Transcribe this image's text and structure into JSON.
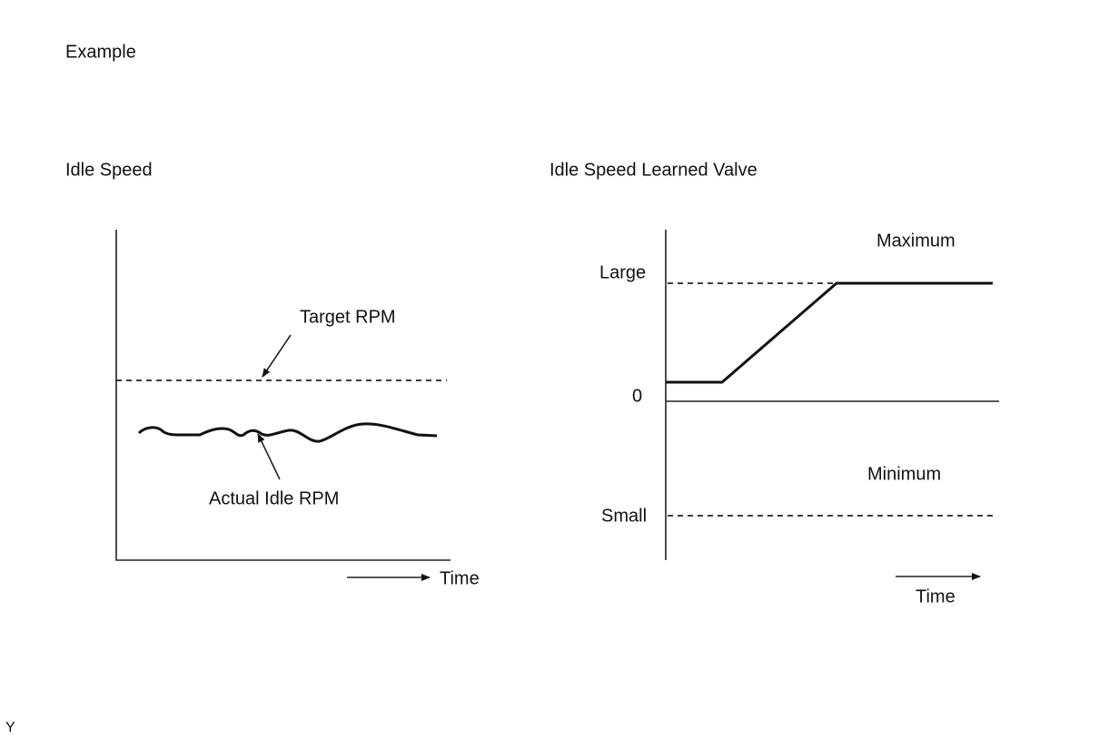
{
  "header": {
    "title": "Example"
  },
  "left": {
    "title": "Idle Speed",
    "target_label": "Target RPM",
    "actual_label": "Actual Idle RPM",
    "time_label": "Time"
  },
  "right": {
    "title": "Idle Speed Learned Valve",
    "large_label": "Large",
    "zero_label": "0",
    "small_label": "Small",
    "maximum_label": "Maximum",
    "minimum_label": "Minimum",
    "time_label": "Time"
  },
  "footer": {
    "code": "Y"
  }
}
